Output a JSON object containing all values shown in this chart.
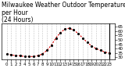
{
  "title": "Milwaukee Weather Outdoor Temperature\nper Hour\n(24 Hours)",
  "hours": [
    0,
    1,
    2,
    3,
    4,
    5,
    6,
    7,
    8,
    9,
    10,
    11,
    12,
    13,
    14,
    15,
    16,
    17,
    18,
    19,
    20,
    21,
    22,
    23
  ],
  "temps": [
    34,
    33,
    32,
    32,
    31,
    31,
    31,
    32,
    34,
    38,
    44,
    52,
    58,
    62,
    63,
    61,
    57,
    52,
    47,
    43,
    40,
    38,
    36,
    35
  ],
  "line_color": "#dd0000",
  "marker_color": "#000000",
  "bg_color": "#ffffff",
  "grid_color": "#aaaaaa",
  "ylabel_right": true,
  "ylim": [
    28,
    68
  ],
  "yticks": [
    30,
    35,
    40,
    45,
    50,
    55,
    60,
    65
  ],
  "title_fontsize": 5.5,
  "tick_fontsize": 4.0
}
